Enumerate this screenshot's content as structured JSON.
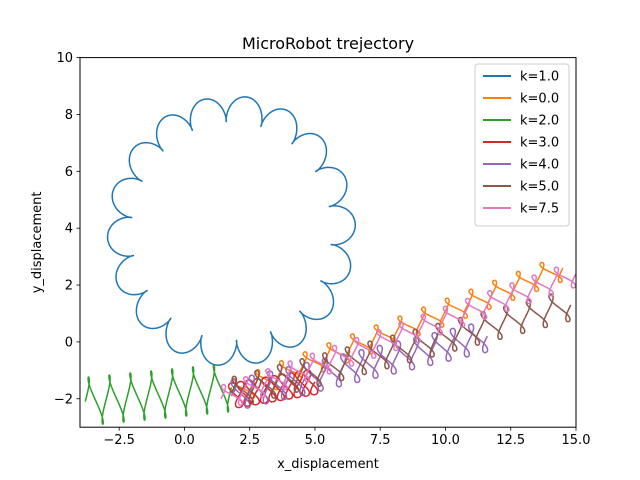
{
  "chart_data": {
    "type": "line",
    "title": "MicroRobot trejectory",
    "xlabel": "x_displacement",
    "ylabel": "y_displacement",
    "xlim": [
      -4,
      15
    ],
    "ylim": [
      -3,
      10
    ],
    "x_ticks": [
      -2.5,
      0.0,
      2.5,
      5.0,
      7.5,
      10.0,
      12.5,
      15.0
    ],
    "x_tick_labels": [
      "−2.5",
      "0.0",
      "2.5",
      "5.0",
      "7.5",
      "10.0",
      "12.5",
      "15.0"
    ],
    "y_ticks": [
      -2,
      0,
      2,
      4,
      6,
      8,
      10
    ],
    "y_tick_labels": [
      "−2",
      "0",
      "2",
      "4",
      "6",
      "8",
      "10"
    ],
    "grid": false,
    "legend_position": "top-right",
    "series": [
      {
        "name": "k=1.0",
        "color": "#1f77b4",
        "shape": "circle",
        "center": [
          1.8,
          3.9
        ],
        "radius": 4.3,
        "start": [
          1.6,
          -1.6
        ],
        "lobes": 18,
        "wiggle": 0.45
      },
      {
        "name": "k=0.0",
        "color": "#ff7f0e",
        "shape": "drift",
        "start": [
          1.8,
          -1.8
        ],
        "end": [
          14.5,
          2.6
        ],
        "cycles": 14,
        "perp_amp": 0.45,
        "along_amp": 0.35
      },
      {
        "name": "k=2.0",
        "color": "#2ca02c",
        "shape": "drift",
        "start": [
          -3.8,
          -2.1
        ],
        "end": [
          1.8,
          -1.6
        ],
        "cycles": 7,
        "perp_amp": 0.85,
        "along_amp": 0.2
      },
      {
        "name": "k=3.0",
        "color": "#d62728",
        "shape": "drift",
        "start": [
          1.8,
          -1.9
        ],
        "end": [
          5.0,
          -1.4
        ],
        "cycles": 10,
        "perp_amp": 0.45,
        "along_amp": 0.35
      },
      {
        "name": "k=4.0",
        "color": "#9467bd",
        "shape": "drift",
        "start": [
          1.8,
          -1.9
        ],
        "end": [
          11.6,
          0.2
        ],
        "cycles": 14,
        "perp_amp": 0.55,
        "along_amp": 0.35
      },
      {
        "name": "k=5.0",
        "color": "#8c564b",
        "shape": "drift",
        "start": [
          1.8,
          -1.8
        ],
        "end": [
          14.8,
          1.3
        ],
        "cycles": 15,
        "perp_amp": 0.55,
        "along_amp": 0.35
      },
      {
        "name": "k=7.5",
        "color": "#e377c2",
        "shape": "drift",
        "start": [
          1.4,
          -2.0
        ],
        "end": [
          15.0,
          2.4
        ],
        "cycles": 16,
        "perp_amp": 0.45,
        "along_amp": 0.35
      }
    ]
  }
}
